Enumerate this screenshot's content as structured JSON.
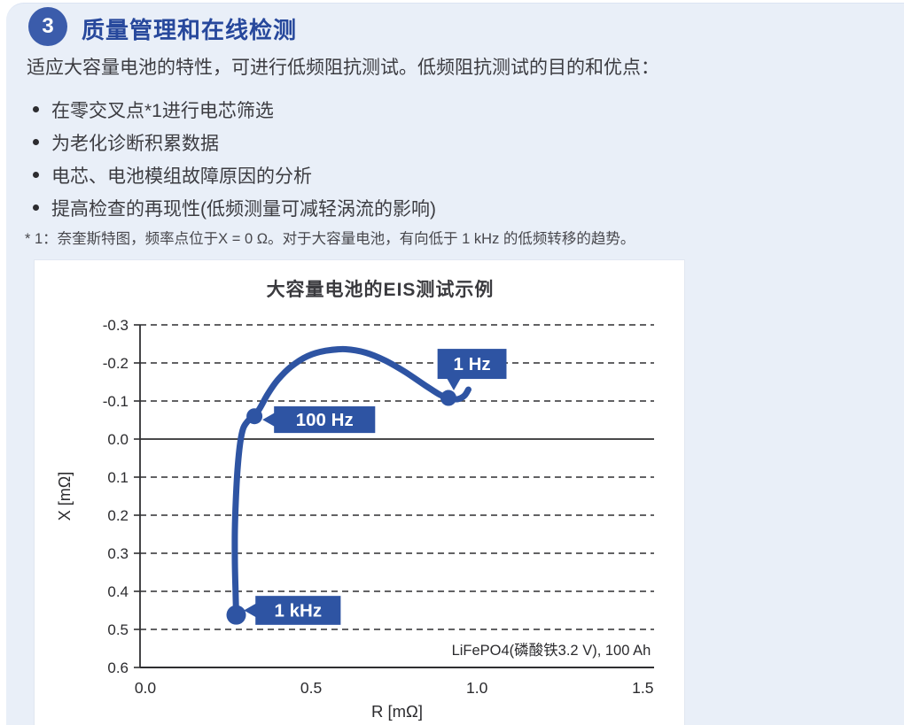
{
  "header": {
    "badge_number": "3",
    "title": "质量管理和在线检测",
    "badge_color": "#3b5cab",
    "title_color": "#27489c"
  },
  "intro": "适应大容量电池的特性，可进行低频阻抗测试。低频阻抗测试的目的和优点：",
  "bullets": [
    "在零交叉点*1进行电芯筛选",
    "为老化诊断积累数据",
    "电芯、电池模组故障原因的分析",
    "提高检查的再现性(低频测量可减轻涡流的影响)"
  ],
  "footnote": "* 1：奈奎斯特图，频率点位于X = 0 Ω。对于大容量电池，有向低于 1 kHz 的低频转移的趋势。",
  "chart_data": {
    "type": "line",
    "title": "大容量电池的EIS测试示例",
    "xlabel": "R [mΩ]",
    "ylabel": "X [mΩ]",
    "annotation": "LiFePO4(磷酸铁3.2 V), 100 Ah",
    "annotation_xy": [
      1.54,
      0.553
    ],
    "xlim": [
      0,
      1.55
    ],
    "ylim": [
      -0.3,
      0.6
    ],
    "y_axis_inverted": "negative X plotted upward (Nyquist convention)",
    "x_ticks": [
      "0.0",
      "0.5",
      "1.0",
      "1.5"
    ],
    "y_ticks": [
      "-0.3",
      "-0.2",
      "-0.1",
      "0.0",
      "0.1",
      "0.2",
      "0.3",
      "0.4",
      "0.5",
      "0.6"
    ],
    "zero_line": "0.0",
    "grid": "dashed horizontal lines at every 0.1, solid line at 0",
    "accent_color": "#2e54a3",
    "grid_color": "#2f2f31",
    "label_text_color": "#2b2b2e",
    "curve": [
      [
        0.29,
        0.465
      ],
      [
        0.288,
        0.4
      ],
      [
        0.286,
        0.32
      ],
      [
        0.286,
        0.24
      ],
      [
        0.289,
        0.16
      ],
      [
        0.294,
        0.08
      ],
      [
        0.302,
        0.01
      ],
      [
        0.312,
        -0.03
      ],
      [
        0.33,
        -0.052
      ],
      [
        0.345,
        -0.06
      ],
      [
        0.362,
        -0.082
      ],
      [
        0.385,
        -0.118
      ],
      [
        0.415,
        -0.155
      ],
      [
        0.455,
        -0.19
      ],
      [
        0.505,
        -0.218
      ],
      [
        0.56,
        -0.232
      ],
      [
        0.62,
        -0.236
      ],
      [
        0.68,
        -0.227
      ],
      [
        0.74,
        -0.206
      ],
      [
        0.8,
        -0.176
      ],
      [
        0.86,
        -0.141
      ],
      [
        0.905,
        -0.116
      ],
      [
        0.93,
        -0.108
      ],
      [
        0.958,
        -0.105
      ],
      [
        0.978,
        -0.114
      ],
      [
        0.99,
        -0.13
      ]
    ],
    "freq_points": [
      {
        "label": "1 kHz",
        "x": 0.29,
        "y": 0.462,
        "dot_r": 11,
        "box": [
          0.348,
          0.412,
          0.605,
          0.488
        ],
        "pointer": "left"
      },
      {
        "label": "100 Hz",
        "x": 0.345,
        "y": -0.06,
        "dot_r": 9,
        "box": [
          0.404,
          -0.086,
          0.709,
          -0.016
        ],
        "pointer": "left"
      },
      {
        "label": "1 Hz",
        "x": 0.93,
        "y": -0.108,
        "dot_r": 9,
        "box": [
          0.897,
          -0.237,
          1.105,
          -0.158
        ],
        "pointer": "bottom"
      }
    ]
  }
}
